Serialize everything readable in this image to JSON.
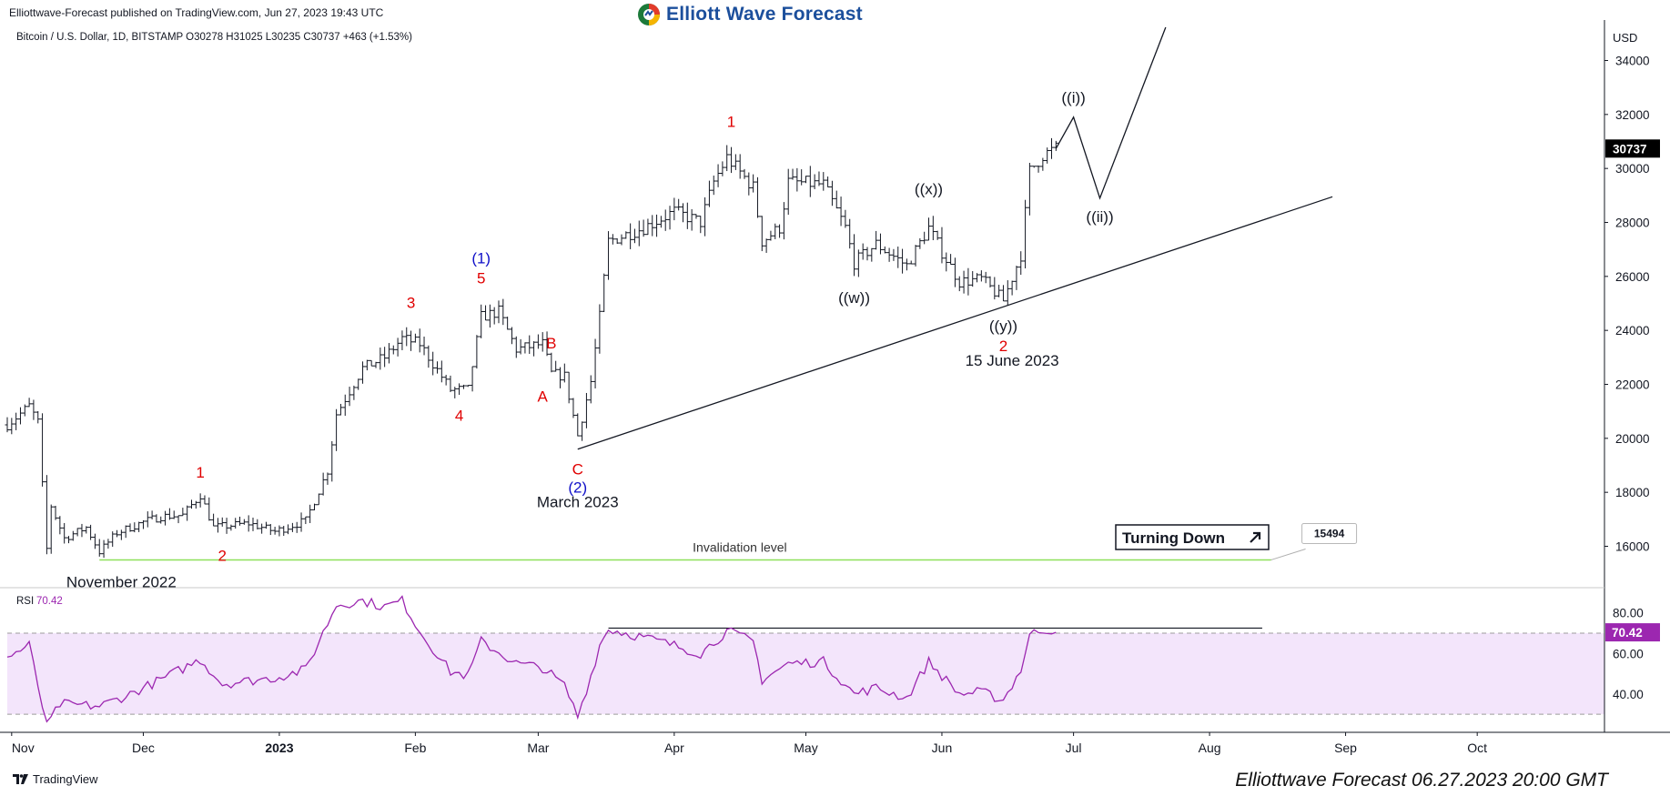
{
  "header": {
    "published": "Elliottwave-Forecast published on TradingView.com, Jun 27, 2023 19:43 UTC",
    "brand": "Elliott Wave Forecast",
    "symbol_line": "Bitcoin / U.S. Dollar, 1D, BITSTAMP  O30278  H31025  L30235  C30737  +463 (+1.53%)"
  },
  "footer": {
    "tradingview": "TradingView",
    "stamp": "Elliottwave Forecast 06.27.2023 20:00 GMT"
  },
  "colors": {
    "wave_red": "#e00000",
    "wave_blue": "#1010c8",
    "invalidation_line": "#8ee05a",
    "rsi_line": "#9c27b0",
    "rsi_band": "#f3e5fb",
    "price_tag_bg": "#000000",
    "rsi_tag_bg": "#9c27b0"
  },
  "chart_data": {
    "type": "ohlc",
    "currency_label": "USD",
    "price_axis_ticks": [
      16000,
      18000,
      20000,
      22000,
      24000,
      26000,
      28000,
      30000,
      32000,
      34000
    ],
    "ylim": [
      14500,
      35500
    ],
    "time_axis_labels": [
      {
        "date": "2022-11-01",
        "label": "Nov",
        "bold": false
      },
      {
        "date": "2022-12-01",
        "label": "Dec",
        "bold": false
      },
      {
        "date": "2023-01-01",
        "label": "2023",
        "bold": true
      },
      {
        "date": "2023-02-01",
        "label": "Feb",
        "bold": false
      },
      {
        "date": "2023-03-01",
        "label": "Mar",
        "bold": false
      },
      {
        "date": "2023-04-01",
        "label": "Apr",
        "bold": false
      },
      {
        "date": "2023-05-01",
        "label": "May",
        "bold": false
      },
      {
        "date": "2023-06-01",
        "label": "Jun",
        "bold": false
      },
      {
        "date": "2023-07-01",
        "label": "Jul",
        "bold": false
      },
      {
        "date": "2023-08-01",
        "label": "Aug",
        "bold": false
      },
      {
        "date": "2023-09-01",
        "label": "Sep",
        "bold": false
      },
      {
        "date": "2023-10-01",
        "label": "Oct",
        "bold": false
      }
    ],
    "xlim": [
      "2022-10-31",
      "2023-10-30"
    ],
    "close_path": [
      [
        "2022-10-31",
        20500
      ],
      [
        "2022-11-05",
        21200
      ],
      [
        "2022-11-07",
        20600
      ],
      [
        "2022-11-09",
        15900
      ],
      [
        "2022-11-10",
        17500
      ],
      [
        "2022-11-13",
        16300
      ],
      [
        "2022-11-18",
        16700
      ],
      [
        "2022-11-21",
        15800
      ],
      [
        "2022-11-25",
        16500
      ],
      [
        "2022-12-01",
        16900
      ],
      [
        "2022-12-05",
        17100
      ],
      [
        "2022-12-10",
        17150
      ],
      [
        "2022-12-14",
        17900
      ],
      [
        "2022-12-17",
        16700
      ],
      [
        "2022-12-25",
        16850
      ],
      [
        "2022-12-31",
        16550
      ],
      [
        "2023-01-07",
        16950
      ],
      [
        "2023-01-12",
        18800
      ],
      [
        "2023-01-14",
        20900
      ],
      [
        "2023-01-20",
        22600
      ],
      [
        "2023-01-25",
        23000
      ],
      [
        "2023-01-29",
        23700
      ],
      [
        "2023-02-02",
        23500
      ],
      [
        "2023-02-09",
        21800
      ],
      [
        "2023-02-13",
        21800
      ],
      [
        "2023-02-16",
        24500
      ],
      [
        "2023-02-20",
        24700
      ],
      [
        "2023-02-24",
        23300
      ],
      [
        "2023-03-02",
        23500
      ],
      [
        "2023-03-04",
        22400
      ],
      [
        "2023-03-07",
        22300
      ],
      [
        "2023-03-10",
        20100
      ],
      [
        "2023-03-13",
        22100
      ],
      [
        "2023-03-15",
        24500
      ],
      [
        "2023-03-17",
        27300
      ],
      [
        "2023-03-25",
        27800
      ],
      [
        "2023-04-01",
        28400
      ],
      [
        "2023-04-07",
        28000
      ],
      [
        "2023-04-10",
        29500
      ],
      [
        "2023-04-13",
        30400
      ],
      [
        "2023-04-19",
        29300
      ],
      [
        "2023-04-21",
        27300
      ],
      [
        "2023-04-25",
        27800
      ],
      [
        "2023-04-27",
        29500
      ],
      [
        "2023-05-05",
        29400
      ],
      [
        "2023-05-10",
        27800
      ],
      [
        "2023-05-12",
        26500
      ],
      [
        "2023-05-17",
        27200
      ],
      [
        "2023-05-24",
        26400
      ],
      [
        "2023-05-29",
        27800
      ],
      [
        "2023-06-01",
        26900
      ],
      [
        "2023-06-05",
        25800
      ],
      [
        "2023-06-10",
        25900
      ],
      [
        "2023-06-15",
        25100
      ],
      [
        "2023-06-19",
        26800
      ],
      [
        "2023-06-21",
        29900
      ],
      [
        "2023-06-24",
        30500
      ],
      [
        "2023-06-27",
        30737
      ]
    ],
    "last_price": "30737",
    "projection_path": [
      [
        "2023-06-27",
        30737
      ],
      [
        "2023-07-01",
        31900
      ],
      [
        "2023-07-07",
        28900
      ],
      [
        "2023-07-22",
        35600
      ]
    ],
    "trendline": [
      [
        "2023-03-10",
        19600
      ],
      [
        "2023-08-29",
        28950
      ]
    ],
    "invalidation": {
      "start": "2022-11-21",
      "end": "2023-08-15",
      "value": 15494,
      "label": "Invalidation level",
      "value_label": "15494"
    },
    "wave_labels": [
      {
        "text": "1",
        "date": "2022-12-14",
        "price": 18000,
        "color": "red",
        "dy": -22
      },
      {
        "text": "2",
        "date": "2022-12-19",
        "price": 16400,
        "color": "red",
        "dy": 22
      },
      {
        "text": "3",
        "date": "2023-01-31",
        "price": 24300,
        "color": "red",
        "dy": -22
      },
      {
        "text": "4",
        "date": "2023-02-11",
        "price": 21600,
        "color": "red",
        "dy": 22
      },
      {
        "text": "5",
        "date": "2023-02-16",
        "price": 25200,
        "color": "red",
        "dy": -22
      },
      {
        "text": "(1)",
        "date": "2023-02-16",
        "price": 25200,
        "color": "blue",
        "dy": -44
      },
      {
        "text": "B",
        "date": "2023-03-04",
        "price": 22800,
        "color": "red",
        "dy": -22
      },
      {
        "text": "A",
        "date": "2023-03-02",
        "price": 22300,
        "color": "red",
        "dy": 22
      },
      {
        "text": "C",
        "date": "2023-03-10",
        "price": 19600,
        "color": "red",
        "dy": 22
      },
      {
        "text": "(2)",
        "date": "2023-03-10",
        "price": 19600,
        "color": "blue",
        "dy": 42
      },
      {
        "text": "1",
        "date": "2023-04-14",
        "price": 31000,
        "color": "red",
        "dy": -22
      },
      {
        "text": "((w))",
        "date": "2023-05-12",
        "price": 25900,
        "color": "black",
        "dy": 20
      },
      {
        "text": "((x))",
        "date": "2023-05-29",
        "price": 28500,
        "color": "black",
        "dy": -22
      },
      {
        "text": "((y))",
        "date": "2023-06-15",
        "price": 24850,
        "color": "black",
        "dy": 20
      },
      {
        "text": "2",
        "date": "2023-06-15",
        "price": 24850,
        "color": "red",
        "dy": 42
      },
      {
        "text": "((i))",
        "date": "2023-07-01",
        "price": 31900,
        "color": "black",
        "dy": -22
      },
      {
        "text": "((ii))",
        "date": "2023-07-07",
        "price": 28900,
        "color": "black",
        "dy": 20
      }
    ],
    "annotations": [
      {
        "text": "November 2022",
        "date": "2022-11-26",
        "price": 15494,
        "dy": 30
      },
      {
        "text": "March 2023",
        "date": "2023-03-10",
        "price": 19600,
        "dy": 64
      },
      {
        "text": "15 June 2023",
        "date": "2023-06-17",
        "price": 24850,
        "dy": 64
      }
    ],
    "turning_down": {
      "text": "Turning Down",
      "icon": "arrow-up-right-icon"
    },
    "rsi": {
      "label": "RSI",
      "value": "70.42",
      "axis_ticks": [
        40,
        60,
        80
      ],
      "ylim": [
        22,
        92
      ],
      "band": [
        30,
        70
      ],
      "resistance_line": {
        "start": "2023-03-17",
        "end": "2023-08-13",
        "value": 72.5
      },
      "path": [
        [
          "2022-10-31",
          58
        ],
        [
          "2022-11-05",
          64
        ],
        [
          "2022-11-09",
          24
        ],
        [
          "2022-11-12",
          35
        ],
        [
          "2022-11-21",
          34
        ],
        [
          "2022-11-28",
          40
        ],
        [
          "2022-12-05",
          47
        ],
        [
          "2022-12-14",
          57
        ],
        [
          "2022-12-19",
          45
        ],
        [
          "2022-12-31",
          48
        ],
        [
          "2023-01-07",
          52
        ],
        [
          "2023-01-14",
          84
        ],
        [
          "2023-01-20",
          86
        ],
        [
          "2023-01-25",
          83
        ],
        [
          "2023-01-29",
          86
        ],
        [
          "2023-02-02",
          71
        ],
        [
          "2023-02-09",
          51
        ],
        [
          "2023-02-13",
          49
        ],
        [
          "2023-02-16",
          66
        ],
        [
          "2023-02-24",
          55
        ],
        [
          "2023-03-02",
          53
        ],
        [
          "2023-03-07",
          44
        ],
        [
          "2023-03-10",
          29
        ],
        [
          "2023-03-13",
          49
        ],
        [
          "2023-03-15",
          64
        ],
        [
          "2023-03-17",
          72
        ],
        [
          "2023-03-25",
          68
        ],
        [
          "2023-04-01",
          64
        ],
        [
          "2023-04-07",
          60
        ],
        [
          "2023-04-13",
          71
        ],
        [
          "2023-04-19",
          66
        ],
        [
          "2023-04-21",
          47
        ],
        [
          "2023-04-27",
          55
        ],
        [
          "2023-05-05",
          56
        ],
        [
          "2023-05-12",
          40
        ],
        [
          "2023-05-17",
          43
        ],
        [
          "2023-05-24",
          38
        ],
        [
          "2023-05-29",
          56
        ],
        [
          "2023-06-01",
          49
        ],
        [
          "2023-06-05",
          40
        ],
        [
          "2023-06-10",
          41
        ],
        [
          "2023-06-15",
          37
        ],
        [
          "2023-06-19",
          52
        ],
        [
          "2023-06-21",
          69
        ],
        [
          "2023-06-24",
          72
        ],
        [
          "2023-06-27",
          70.42
        ]
      ]
    }
  }
}
